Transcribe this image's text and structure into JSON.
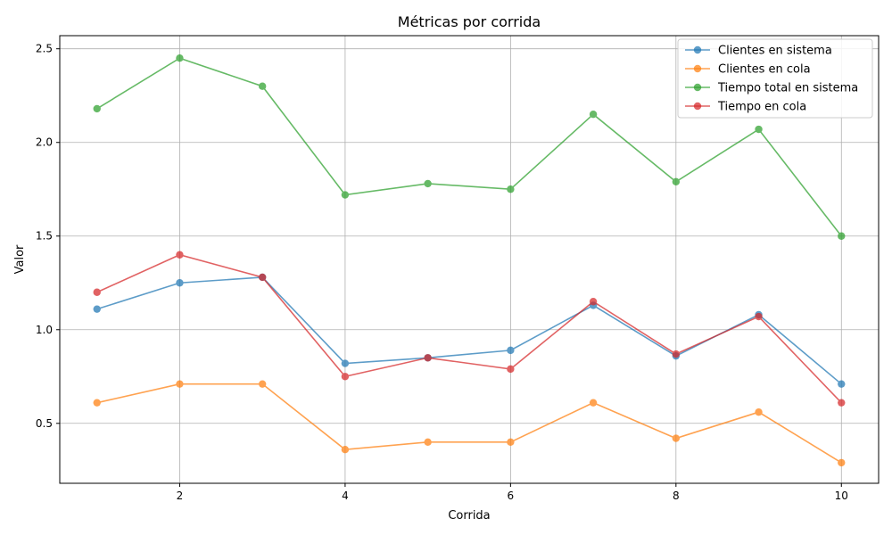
{
  "chart_data": {
    "type": "line",
    "title": "Métricas por corrida",
    "xlabel": "Corrida",
    "ylabel": "Valor",
    "x": [
      1,
      2,
      3,
      4,
      5,
      6,
      7,
      8,
      9,
      10
    ],
    "xlim": [
      0.55,
      10.45
    ],
    "ylim": [
      0.18,
      2.57
    ],
    "xticks": [
      2,
      4,
      6,
      8,
      10
    ],
    "yticks": [
      0.5,
      1.0,
      1.5,
      2.0,
      2.5
    ],
    "ytick_labels": [
      "0.5",
      "1.0",
      "1.5",
      "2.0",
      "2.5"
    ],
    "grid": true,
    "legend_position": "top-right",
    "series": [
      {
        "name": "Clientes en sistema",
        "color": "#1f77b4",
        "values": [
          1.11,
          1.25,
          1.28,
          0.82,
          0.85,
          0.89,
          1.13,
          0.86,
          1.08,
          0.71
        ]
      },
      {
        "name": "Clientes en cola",
        "color": "#ff7f0e",
        "values": [
          0.61,
          0.71,
          0.71,
          0.36,
          0.4,
          0.4,
          0.61,
          0.42,
          0.56,
          0.29
        ]
      },
      {
        "name": "Tiempo total en sistema",
        "color": "#2ca02c",
        "values": [
          2.18,
          2.45,
          2.3,
          1.72,
          1.78,
          1.75,
          2.15,
          1.79,
          2.07,
          1.5
        ]
      },
      {
        "name": "Tiempo en cola",
        "color": "#d62728",
        "values": [
          1.2,
          1.4,
          1.28,
          0.75,
          0.85,
          0.79,
          1.15,
          0.87,
          1.07,
          0.61
        ]
      }
    ]
  }
}
